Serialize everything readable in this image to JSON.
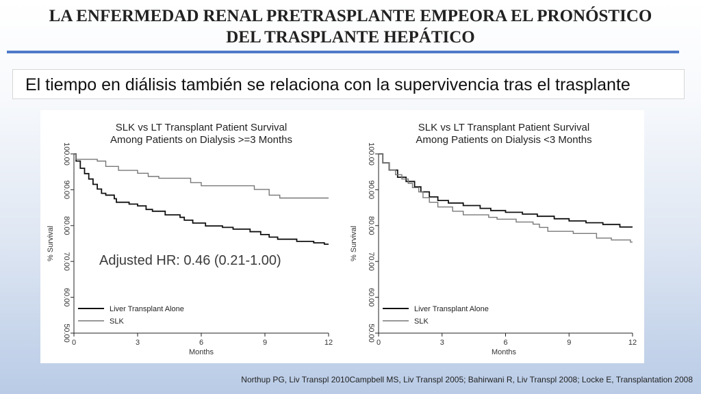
{
  "slide": {
    "title_line1": "LA ENFERMEDAD RENAL PRETRASPLANTE EMPEORA EL PRONÓSTICO",
    "title_line2": "DEL TRASPLANTE HEPÁTICO",
    "subtitle": "El tiempo en diálisis también se relaciona con la supervivencia tras el trasplante",
    "footer": "Northup PG, Liv Transpl 2010Campbell MS, Liv Transpl 2005; Bahirwani R, Liv Transpl 2008; Locke E, Transplantation 2008",
    "accent_color": "#4f7ac8"
  },
  "chart_data": [
    {
      "type": "line",
      "title": "SLK vs LT Transplant Patient Survival",
      "subtitle": "Among Patients on Dialysis >=3 Months",
      "xlabel": "Months",
      "ylabel": "% Survival",
      "xlim": [
        0,
        12
      ],
      "ylim": [
        50,
        100
      ],
      "x_ticks": [
        0,
        3,
        6,
        9,
        12
      ],
      "y_ticks": [
        "50.00",
        "60.00",
        "70.00",
        "80.00",
        "90.00",
        "100.00"
      ],
      "annotation": "Adjusted HR: 0.46 (0.21-1.00)",
      "legend_position": "bottom-left",
      "series": [
        {
          "name": "Liver Transplant Alone",
          "color": "#111111",
          "step": true,
          "points": [
            [
              0,
              100
            ],
            [
              0.1,
              98
            ],
            [
              0.3,
              96
            ],
            [
              0.5,
              94.5
            ],
            [
              0.7,
              93
            ],
            [
              0.9,
              91.5
            ],
            [
              1.1,
              90.2
            ],
            [
              1.3,
              89
            ],
            [
              1.5,
              88.5
            ],
            [
              1.9,
              87.5
            ],
            [
              2.0,
              86.5
            ],
            [
              2.6,
              86
            ],
            [
              3.0,
              85.5
            ],
            [
              3.4,
              84.5
            ],
            [
              3.7,
              84
            ],
            [
              4.3,
              83
            ],
            [
              5.0,
              82.3
            ],
            [
              5.2,
              81.5
            ],
            [
              5.6,
              80.7
            ],
            [
              6.2,
              79.9
            ],
            [
              7.0,
              79.5
            ],
            [
              7.5,
              79.0
            ],
            [
              8.3,
              78.3
            ],
            [
              8.8,
              77.5
            ],
            [
              9.2,
              76.8
            ],
            [
              9.6,
              76.2
            ],
            [
              10.5,
              75.6
            ],
            [
              11.3,
              75.2
            ],
            [
              11.8,
              74.8
            ],
            [
              12.0,
              74.8
            ]
          ]
        },
        {
          "name": "SLK",
          "color": "#777777",
          "step": true,
          "points": [
            [
              0,
              100
            ],
            [
              0.1,
              98.5
            ],
            [
              1.1,
              98
            ],
            [
              1.5,
              96.5
            ],
            [
              2.1,
              95.4
            ],
            [
              3.0,
              94.6
            ],
            [
              3.5,
              93.7
            ],
            [
              4.0,
              93.2
            ],
            [
              5.5,
              92.0
            ],
            [
              6.0,
              91.1
            ],
            [
              8.5,
              90.1
            ],
            [
              9.2,
              88.5
            ],
            [
              9.7,
              87.7
            ],
            [
              12.0,
              87.7
            ]
          ]
        }
      ]
    },
    {
      "type": "line",
      "title": "SLK vs LT Transplant Patient Survival",
      "subtitle": "Among Patients on Dialysis <3 Months",
      "xlabel": "Months",
      "ylabel": "% Survival",
      "xlim": [
        0,
        12
      ],
      "ylim": [
        50,
        100
      ],
      "x_ticks": [
        0,
        3,
        6,
        9,
        12
      ],
      "y_ticks": [
        "50.00",
        "60.00",
        "70.00",
        "80.00",
        "90.00",
        "100.00"
      ],
      "legend_position": "bottom-left",
      "series": [
        {
          "name": "Liver Transplant Alone",
          "color": "#111111",
          "step": true,
          "points": [
            [
              0,
              100
            ],
            [
              0.2,
              97.5
            ],
            [
              0.5,
              95.5
            ],
            [
              0.9,
              93.5
            ],
            [
              1.3,
              92.3
            ],
            [
              1.7,
              90.8
            ],
            [
              2.0,
              89.4
            ],
            [
              2.4,
              88.0
            ],
            [
              2.8,
              87.0
            ],
            [
              3.3,
              86.3
            ],
            [
              4.0,
              85.6
            ],
            [
              4.8,
              84.8
            ],
            [
              5.3,
              84.2
            ],
            [
              6.0,
              83.7
            ],
            [
              6.8,
              83.2
            ],
            [
              7.5,
              82.6
            ],
            [
              8.3,
              81.9
            ],
            [
              9.0,
              81.3
            ],
            [
              9.8,
              80.8
            ],
            [
              10.6,
              80.3
            ],
            [
              11.4,
              79.6
            ],
            [
              12.0,
              79.6
            ]
          ]
        },
        {
          "name": "SLK",
          "color": "#777777",
          "step": true,
          "points": [
            [
              0,
              100
            ],
            [
              0.2,
              97.5
            ],
            [
              0.5,
              95.5
            ],
            [
              0.8,
              94.2
            ],
            [
              1.1,
              93.0
            ],
            [
              1.4,
              91.8
            ],
            [
              1.6,
              90.6
            ],
            [
              1.9,
              89.4
            ],
            [
              2.1,
              87.8
            ],
            [
              2.4,
              86.5
            ],
            [
              2.8,
              85.2
            ],
            [
              3.5,
              84.0
            ],
            [
              4.0,
              83.0
            ],
            [
              5.2,
              82.3
            ],
            [
              5.6,
              81.8
            ],
            [
              6.5,
              81.0
            ],
            [
              7.3,
              80.4
            ],
            [
              7.6,
              79.5
            ],
            [
              8.0,
              78.4
            ],
            [
              9.2,
              77.8
            ],
            [
              10.3,
              76.5
            ],
            [
              11.0,
              76.0
            ],
            [
              11.9,
              75.4
            ],
            [
              12.0,
              75.4
            ]
          ]
        }
      ]
    }
  ]
}
